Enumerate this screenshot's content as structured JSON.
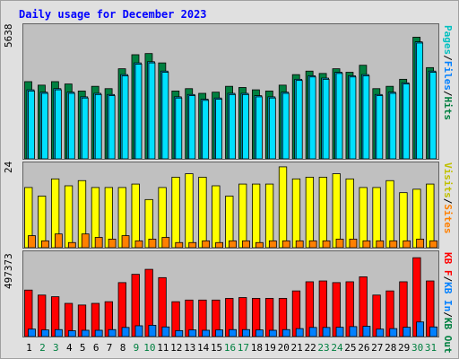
{
  "title": "Daily usage for December 2023",
  "colors": {
    "frame_bg": "#e0e0e0",
    "plot_bg": "#c0c0c0",
    "hits": "#008040",
    "files": "#00c0ff",
    "pages": "#00e0ff",
    "visits": "#ffff00",
    "sites": "#ff8000",
    "kbin": "#0080ff",
    "kbf": "#ff0000",
    "title": "#0000ff",
    "weekend_label": "#008040",
    "weekday_label": "#000000"
  },
  "chart_data": [
    {
      "type": "bar",
      "panel": "top",
      "max_label": "5638",
      "ylim": [
        0,
        5638
      ],
      "legend": [
        "Pages",
        "/",
        "Files",
        "/",
        "Hits"
      ],
      "categories": [
        "1",
        "2",
        "3",
        "4",
        "5",
        "6",
        "7",
        "8",
        "9",
        "10",
        "11",
        "12",
        "13",
        "14",
        "15",
        "16",
        "17",
        "18",
        "19",
        "20",
        "21",
        "22",
        "23",
        "24",
        "25",
        "26",
        "27",
        "28",
        "29",
        "30",
        "31"
      ],
      "series": [
        {
          "name": "Hits",
          "values": [
            3300,
            3150,
            3300,
            3200,
            2900,
            3100,
            3000,
            3850,
            4450,
            4500,
            4100,
            2900,
            3000,
            2800,
            2850,
            3100,
            3050,
            2950,
            2900,
            3150,
            3600,
            3750,
            3650,
            3850,
            3700,
            4000,
            3000,
            3100,
            3400,
            5200,
            3900
          ]
        },
        {
          "name": "Files",
          "values": [
            2950,
            2850,
            3000,
            2850,
            2650,
            2800,
            2750,
            3600,
            4100,
            4150,
            3750,
            2650,
            2750,
            2550,
            2600,
            2800,
            2800,
            2700,
            2650,
            2850,
            3400,
            3550,
            3450,
            3700,
            3550,
            3600,
            2750,
            2850,
            3250,
            5000,
            3750
          ]
        },
        {
          "name": "Pages",
          "values": [
            2900,
            2800,
            2950,
            2800,
            2600,
            2750,
            2700,
            3550,
            4050,
            4100,
            3700,
            2600,
            2700,
            2500,
            2550,
            2750,
            2750,
            2650,
            2600,
            2800,
            3350,
            3500,
            3400,
            3650,
            3500,
            3550,
            2700,
            2800,
            3200,
            4950,
            3700
          ]
        }
      ]
    },
    {
      "type": "bar",
      "panel": "middle",
      "max_label": "24",
      "ylim": [
        0,
        24
      ],
      "legend": [
        "Visits",
        "/",
        "Sites"
      ],
      "categories": [
        "1",
        "2",
        "3",
        "4",
        "5",
        "6",
        "7",
        "8",
        "9",
        "10",
        "11",
        "12",
        "13",
        "14",
        "15",
        "16",
        "17",
        "18",
        "19",
        "20",
        "21",
        "22",
        "23",
        "24",
        "25",
        "26",
        "27",
        "28",
        "29",
        "30",
        "31"
      ],
      "series": [
        {
          "name": "Visits",
          "values": [
            17.5,
            15,
            20,
            18,
            19.5,
            17.5,
            17.5,
            17.5,
            18.5,
            14,
            17.5,
            20.5,
            21.5,
            20.5,
            18,
            15,
            18.5,
            18.5,
            18.5,
            23.5,
            20,
            20.5,
            20.5,
            21.5,
            20,
            17.5,
            17.5,
            19.5,
            16,
            17,
            18.5
          ]
        },
        {
          "name": "Sites",
          "values": [
            3.5,
            2,
            4,
            1.5,
            4,
            3,
            2.5,
            3.5,
            2,
            2.5,
            3,
            1.5,
            1.5,
            2,
            1.5,
            2,
            2,
            1.5,
            2,
            2,
            2,
            2,
            2,
            2.5,
            2.5,
            2,
            2,
            2,
            2,
            2.5,
            2
          ]
        }
      ]
    },
    {
      "type": "bar",
      "panel": "bottom",
      "max_label": "497373",
      "ylim": [
        0,
        497373
      ],
      "legend": [
        "KB F",
        "/",
        "KB In",
        "/",
        "KB Out"
      ],
      "categories": [
        "1",
        "2",
        "3",
        "4",
        "5",
        "6",
        "7",
        "8",
        "9",
        "10",
        "11",
        "12",
        "13",
        "14",
        "15",
        "16",
        "17",
        "18",
        "19",
        "20",
        "21",
        "22",
        "23",
        "24",
        "25",
        "26",
        "27",
        "28",
        "29",
        "30",
        "31"
      ],
      "series": [
        {
          "name": "KB F",
          "values": [
            280000,
            250000,
            240000,
            200000,
            190000,
            200000,
            210000,
            325000,
            375000,
            405000,
            355000,
            210000,
            220000,
            220000,
            220000,
            230000,
            235000,
            230000,
            230000,
            230000,
            275000,
            330000,
            335000,
            325000,
            330000,
            360000,
            250000,
            275000,
            330000,
            475000,
            335000
          ]
        },
        {
          "name": "KB In",
          "values": [
            45000,
            40000,
            42000,
            35000,
            38000,
            38000,
            42000,
            55000,
            65000,
            68000,
            58000,
            36000,
            40000,
            38000,
            40000,
            42000,
            42000,
            40000,
            38000,
            42000,
            48000,
            55000,
            55000,
            56000,
            60000,
            62000,
            45000,
            48000,
            56000,
            88000,
            58000
          ]
        }
      ]
    }
  ],
  "x_label_colors": [
    "weekday",
    "weekend",
    "weekend",
    "weekday",
    "weekday",
    "weekday",
    "weekday",
    "weekday",
    "weekend",
    "weekend",
    "weekday",
    "weekday",
    "weekday",
    "weekday",
    "weekday",
    "weekend",
    "weekend",
    "weekday",
    "weekday",
    "weekday",
    "weekday",
    "weekday",
    "weekend",
    "weekend",
    "weekday",
    "weekday",
    "weekday",
    "weekday",
    "weekday",
    "weekend",
    "weekend"
  ]
}
